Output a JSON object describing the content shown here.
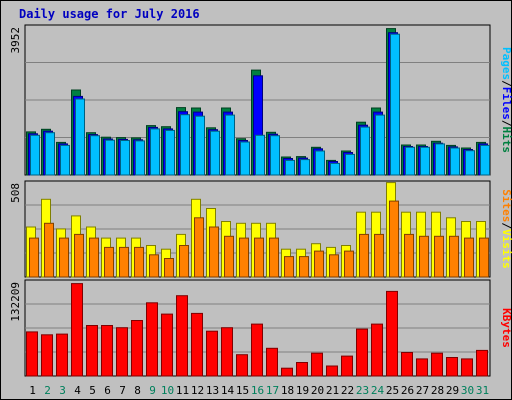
{
  "title": "Daily usage for July 2016",
  "colors": {
    "title": "#0000c0",
    "hits": "#008040",
    "files": "#0000ff",
    "pages": "#00c0ff",
    "visits": "#ffff00",
    "sites": "#ff8000",
    "kbytes": "#ff0000",
    "weekend_day": "#00805c",
    "weekday": "#000000"
  },
  "chart_data": [
    {
      "type": "bar",
      "name": "hits-files-pages",
      "scale_label": "3952",
      "legend": [
        "Pages",
        "Files",
        "Hits"
      ],
      "ylim": [
        0,
        3952
      ],
      "categories": [
        "1",
        "2",
        "3",
        "4",
        "5",
        "6",
        "7",
        "8",
        "9",
        "10",
        "11",
        "12",
        "13",
        "14",
        "15",
        "16",
        "17",
        "18",
        "19",
        "20",
        "21",
        "22",
        "23",
        "24",
        "25",
        "26",
        "27",
        "28",
        "29",
        "30",
        "31"
      ],
      "series": [
        {
          "name": "Hits",
          "values": [
            1150,
            1220,
            870,
            2270,
            1130,
            1010,
            1000,
            990,
            1320,
            1290,
            1800,
            1790,
            1260,
            1790,
            970,
            2800,
            1140,
            480,
            490,
            740,
            390,
            640,
            1410,
            1790,
            3910,
            800,
            800,
            900,
            790,
            720,
            870
          ]
        },
        {
          "name": "Files",
          "values": [
            1100,
            1170,
            830,
            2100,
            1080,
            960,
            950,
            940,
            1270,
            1230,
            1690,
            1680,
            1210,
            1680,
            920,
            2650,
            1090,
            440,
            450,
            700,
            360,
            600,
            1330,
            1680,
            3800,
            760,
            760,
            850,
            750,
            680,
            830
          ]
        },
        {
          "name": "Pages",
          "values": [
            1060,
            1130,
            790,
            2030,
            1050,
            930,
            920,
            910,
            1230,
            1190,
            1610,
            1570,
            1170,
            1600,
            880,
            1060,
            1050,
            390,
            410,
            640,
            310,
            550,
            1280,
            1600,
            3760,
            740,
            740,
            830,
            720,
            650,
            790
          ]
        }
      ]
    },
    {
      "type": "bar",
      "name": "visits-sites",
      "scale_label": "508",
      "legend": [
        "Sites",
        "Visits"
      ],
      "ylim": [
        0,
        508
      ],
      "categories": [
        "1",
        "2",
        "3",
        "4",
        "5",
        "6",
        "7",
        "8",
        "9",
        "10",
        "11",
        "12",
        "13",
        "14",
        "15",
        "16",
        "17",
        "18",
        "19",
        "20",
        "21",
        "22",
        "23",
        "24",
        "25",
        "26",
        "27",
        "28",
        "29",
        "30",
        "31"
      ],
      "series": [
        {
          "name": "Visits",
          "values": [
            270,
            420,
            260,
            330,
            270,
            210,
            210,
            210,
            170,
            150,
            230,
            420,
            370,
            300,
            290,
            290,
            290,
            150,
            150,
            180,
            160,
            170,
            350,
            350,
            510,
            350,
            350,
            350,
            320,
            300,
            300
          ]
        },
        {
          "name": "Sites",
          "values": [
            210,
            290,
            210,
            230,
            210,
            160,
            160,
            160,
            120,
            100,
            170,
            320,
            270,
            220,
            210,
            210,
            210,
            110,
            110,
            140,
            120,
            140,
            230,
            230,
            410,
            230,
            220,
            220,
            220,
            210,
            210
          ]
        }
      ]
    },
    {
      "type": "bar",
      "name": "kbytes",
      "scale_label": "132209",
      "legend": [
        "KBytes"
      ],
      "ylim": [
        0,
        132209
      ],
      "categories": [
        "1",
        "2",
        "3",
        "4",
        "5",
        "6",
        "7",
        "8",
        "9",
        "10",
        "11",
        "12",
        "13",
        "14",
        "15",
        "16",
        "17",
        "18",
        "19",
        "20",
        "21",
        "22",
        "23",
        "24",
        "25",
        "26",
        "27",
        "28",
        "29",
        "30",
        "31"
      ],
      "series": [
        {
          "name": "KBytes",
          "values": [
            62000,
            58000,
            59000,
            130000,
            71000,
            71000,
            68000,
            78000,
            103000,
            87000,
            113000,
            88000,
            63000,
            68000,
            30000,
            73000,
            39000,
            11000,
            19000,
            32000,
            14000,
            28000,
            66000,
            73000,
            119000,
            33000,
            24000,
            32000,
            26000,
            24000,
            36000
          ]
        }
      ]
    }
  ]
}
